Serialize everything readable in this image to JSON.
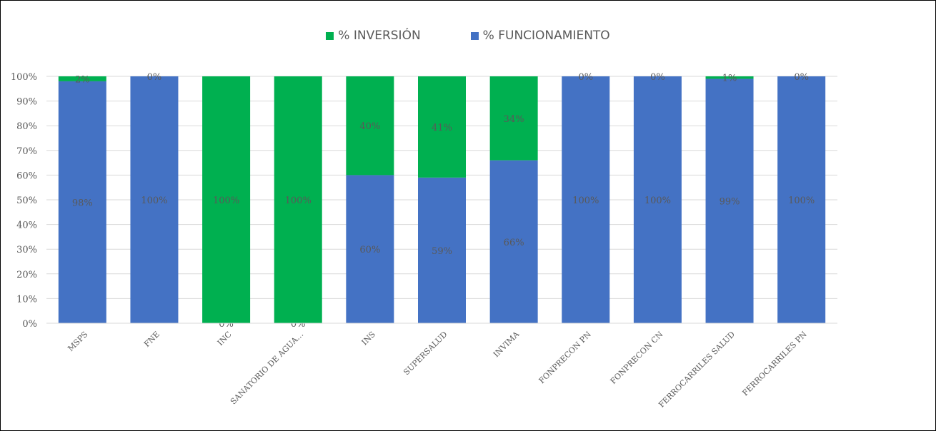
{
  "chart_data": {
    "type": "bar",
    "stacked": true,
    "categories": [
      "MSPS",
      "FNE",
      "INC",
      "SANATORIO DE AGUA…",
      "INS",
      "SUPERSALUD",
      "INVIMA",
      "FONPRECON PN",
      "FONPRECON CN",
      "FERROCARRILES SALUD",
      "FERROCARRILES PN"
    ],
    "series": [
      {
        "name": "% FUNCIONAMIENTO",
        "color": "#4472C4",
        "values": [
          98,
          100,
          0,
          0,
          60,
          59,
          66,
          100,
          100,
          99,
          100
        ],
        "labels": [
          "98%",
          "100%",
          "0%",
          "0%",
          "60%",
          "59%",
          "66%",
          "100%",
          "100%",
          "99%",
          "100%"
        ]
      },
      {
        "name": "% INVERSIÓN",
        "color": "#00B050",
        "values": [
          2,
          0,
          100,
          100,
          40,
          41,
          34,
          0,
          0,
          1,
          0
        ],
        "labels": [
          "2%",
          "0%",
          "100%",
          "100%",
          "40%",
          "41%",
          "34%",
          "0%",
          "0%",
          "1%",
          "0%"
        ]
      }
    ],
    "ylim": [
      0,
      100
    ],
    "yticks": [
      "0%",
      "10%",
      "20%",
      "30%",
      "40%",
      "50%",
      "60%",
      "70%",
      "80%",
      "90%",
      "100%"
    ],
    "grid": true,
    "legend_position": "top",
    "legend_order": [
      "% INVERSIÓN",
      "% FUNCIONAMIENTO"
    ]
  }
}
